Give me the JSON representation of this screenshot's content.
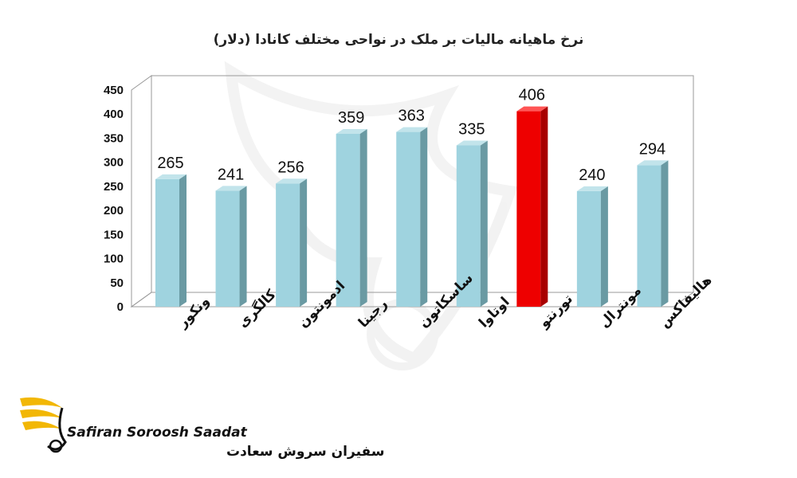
{
  "chart_data": {
    "type": "bar",
    "title": "نرخ ماهیانه مالیات بر ملک در نواحی مختلف کانادا (دلار)",
    "categories": [
      "ونکور",
      "کالگری",
      "ادمونتون",
      "رجینا",
      "ساسکاتون",
      "اوتاوا",
      "تورنتو",
      "مونترال",
      "هالیفاکس"
    ],
    "values": [
      265,
      241,
      256,
      359,
      363,
      335,
      406,
      240,
      294
    ],
    "data_labels": [
      "265",
      "241",
      "256",
      "359",
      "363",
      "335",
      "406",
      "240",
      "294"
    ],
    "ylim": [
      0,
      450
    ],
    "yticks": [
      "0",
      "50",
      "100",
      "150",
      "200",
      "250",
      "300",
      "350",
      "400",
      "450"
    ],
    "grid": false,
    "bar_style": "3d",
    "colors": {
      "bar_front": "#9fd3df",
      "bar_side": "#6a9aa3",
      "bar_top": "#c2e4eb",
      "highlight_front": "#ee0000",
      "highlight_side": "#a80000",
      "highlight_top": "#ff5555",
      "wall": "#999999"
    },
    "highlight_index": 6
  },
  "logo": {
    "text_en": "Safiran Soroosh Saadat",
    "text_fa": "سفیران سروش سعادت",
    "colors": {
      "wing": "#f2b705",
      "text": "#111111"
    }
  }
}
